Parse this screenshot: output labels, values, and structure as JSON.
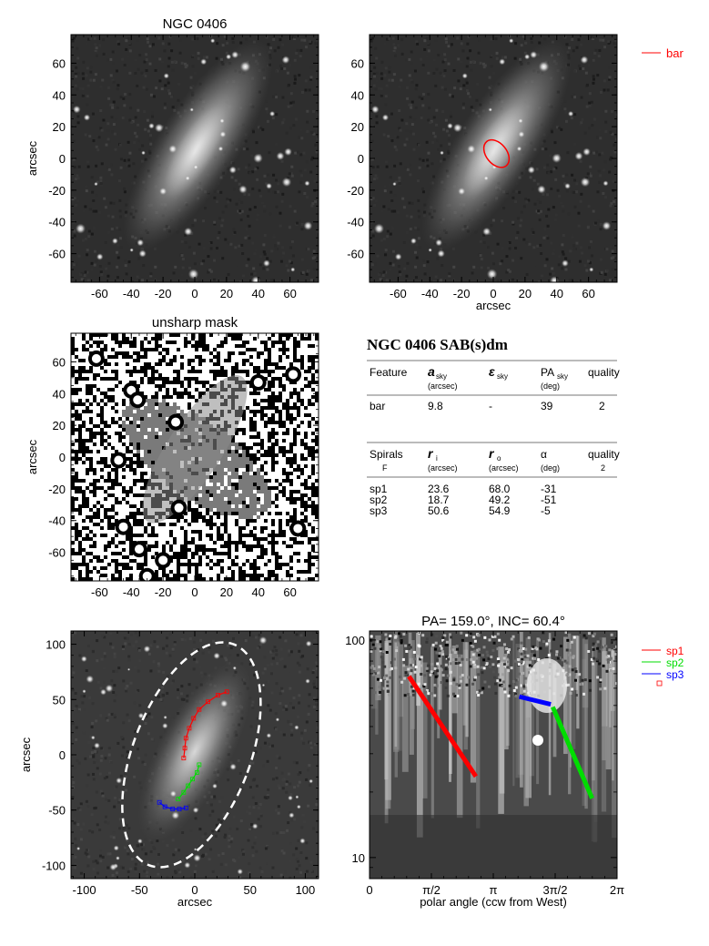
{
  "figure": {
    "galaxy": "NGC 0406",
    "morphology": "SAB(s)dm",
    "colors": {
      "bar": "#ff0000",
      "sp1": "#ff0000",
      "sp2": "#00dd00",
      "sp3": "#0000ff",
      "ellipse": "#ffffff"
    }
  },
  "chart_data": [
    {
      "id": "image",
      "type": "heatmap",
      "title": "NGC 0406",
      "xlabel": "",
      "ylabel": "arcsec",
      "xlim": [
        -78,
        78
      ],
      "ylim": [
        -78,
        78
      ],
      "xticks": [
        -60,
        -40,
        -20,
        0,
        20,
        40,
        60
      ],
      "yticks": [
        -60,
        -40,
        -20,
        0,
        20,
        40,
        60
      ]
    },
    {
      "id": "bar_fit",
      "type": "heatmap",
      "title": "",
      "xlabel": "arcsec",
      "ylabel": "",
      "xlim": [
        -78,
        78
      ],
      "ylim": [
        -78,
        78
      ],
      "xticks": [
        -60,
        -40,
        -20,
        0,
        20,
        40,
        60
      ],
      "yticks": [
        -60,
        -40,
        -20,
        0,
        20,
        40,
        60
      ],
      "legend": [
        {
          "label": "bar",
          "color": "#ff0000"
        }
      ],
      "ellipse": {
        "center": [
          2,
          3
        ],
        "a": 9.8,
        "b": 6.5,
        "pa_deg": 39
      }
    },
    {
      "id": "unsharp",
      "type": "heatmap",
      "title": "unsharp mask",
      "xlabel": "",
      "ylabel": "arcsec",
      "xlim": [
        -78,
        78
      ],
      "ylim": [
        -78,
        78
      ],
      "xticks": [
        -60,
        -40,
        -20,
        0,
        20,
        40,
        60
      ],
      "yticks": [
        -60,
        -40,
        -20,
        0,
        20,
        40,
        60
      ]
    },
    {
      "id": "table",
      "type": "table",
      "title": "NGC 0406  SAB(s)dm",
      "bar_table": {
        "headers": [
          {
            "main": "Feature",
            "sub": "",
            "unit": ""
          },
          {
            "main": "a",
            "sub": "sky",
            "unit": "(arcsec)"
          },
          {
            "main": "ε",
            "sub": "sky",
            "unit": ""
          },
          {
            "main": "PA",
            "sub": "sky",
            "unit": "(deg)"
          },
          {
            "main": "quality",
            "sub": "",
            "unit": ""
          }
        ],
        "rows": [
          [
            "bar",
            "9.8",
            "-",
            "39",
            "2"
          ]
        ]
      },
      "spiral_table": {
        "headers": [
          {
            "main": "Spirals",
            "sub": "",
            "unit": "F"
          },
          {
            "main": "r",
            "sub": "i",
            "unit": "(arcsec)"
          },
          {
            "main": "r",
            "sub": "o",
            "unit": "(arcsec)"
          },
          {
            "main": "α",
            "sub": "",
            "unit": "(deg)"
          },
          {
            "main": "quality",
            "sub": "",
            "unit": "2"
          }
        ],
        "rows": [
          [
            "sp1",
            "23.6",
            "68.0",
            "-31"
          ],
          [
            "sp2",
            "18.7",
            "49.2",
            "-51"
          ],
          [
            "sp3",
            "50.6",
            "54.9",
            "-5"
          ]
        ]
      }
    },
    {
      "id": "deprojected",
      "type": "line",
      "title": "",
      "xlabel": "arcsec",
      "ylabel": "arcsec",
      "xlim": [
        -112,
        112
      ],
      "ylim": [
        -112,
        112
      ],
      "xticks": [
        -100,
        -50,
        0,
        50,
        100
      ],
      "yticks": [
        -100,
        -50,
        0,
        50,
        100
      ],
      "disk_ellipse": {
        "center": [
          -3,
          0
        ],
        "a": 107,
        "b": 53,
        "pa_deg": 159
      },
      "series": [
        {
          "name": "sp1",
          "color": "#ff0000",
          "x": [
            -10,
            -9,
            -8,
            -5,
            -1,
            4,
            12,
            21,
            29
          ],
          "y": [
            -3,
            6,
            15,
            24,
            33,
            41,
            48,
            54,
            57
          ]
        },
        {
          "name": "sp2",
          "color": "#00dd00",
          "x": [
            -15,
            -10,
            -6,
            -2,
            2,
            4
          ],
          "y": [
            -40,
            -34,
            -28,
            -22,
            -16,
            -9
          ]
        },
        {
          "name": "sp3",
          "color": "#0000ff",
          "x": [
            -32,
            -27,
            -20,
            -14,
            -8
          ],
          "y": [
            -43,
            -47,
            -49,
            -49,
            -48
          ]
        }
      ]
    },
    {
      "id": "polar",
      "type": "line",
      "title": "PA= 159.0°, INC=  60.4°",
      "xlabel": "polar angle (ccw from West)",
      "ylabel": "",
      "xlim": [
        0,
        6.2832
      ],
      "ylim": [
        8,
        110
      ],
      "yscale": "log",
      "xticks": [
        {
          "v": 0,
          "label": "0"
        },
        {
          "v": 1.5708,
          "label": "π/2"
        },
        {
          "v": 3.1416,
          "label": "π"
        },
        {
          "v": 4.7124,
          "label": "3π/2"
        },
        {
          "v": 6.2832,
          "label": "2π"
        }
      ],
      "yticks": [
        {
          "v": 10,
          "label": "10"
        },
        {
          "v": 100,
          "label": "100"
        }
      ],
      "legend": [
        {
          "label": "sp1",
          "color": "#ff0000"
        },
        {
          "label": "sp2",
          "color": "#00dd00"
        },
        {
          "label": "sp3",
          "color": "#0000ff"
        }
      ],
      "series": [
        {
          "name": "sp1",
          "color": "#ff0000",
          "x": [
            1.0,
            2.7
          ],
          "y": [
            68.0,
            23.6
          ]
        },
        {
          "name": "sp2",
          "color": "#00dd00",
          "x": [
            4.65,
            5.65
          ],
          "y": [
            49.2,
            18.7
          ]
        },
        {
          "name": "sp3",
          "color": "#0000ff",
          "x": [
            3.8,
            4.6
          ],
          "y": [
            54.9,
            50.6
          ]
        }
      ]
    }
  ]
}
